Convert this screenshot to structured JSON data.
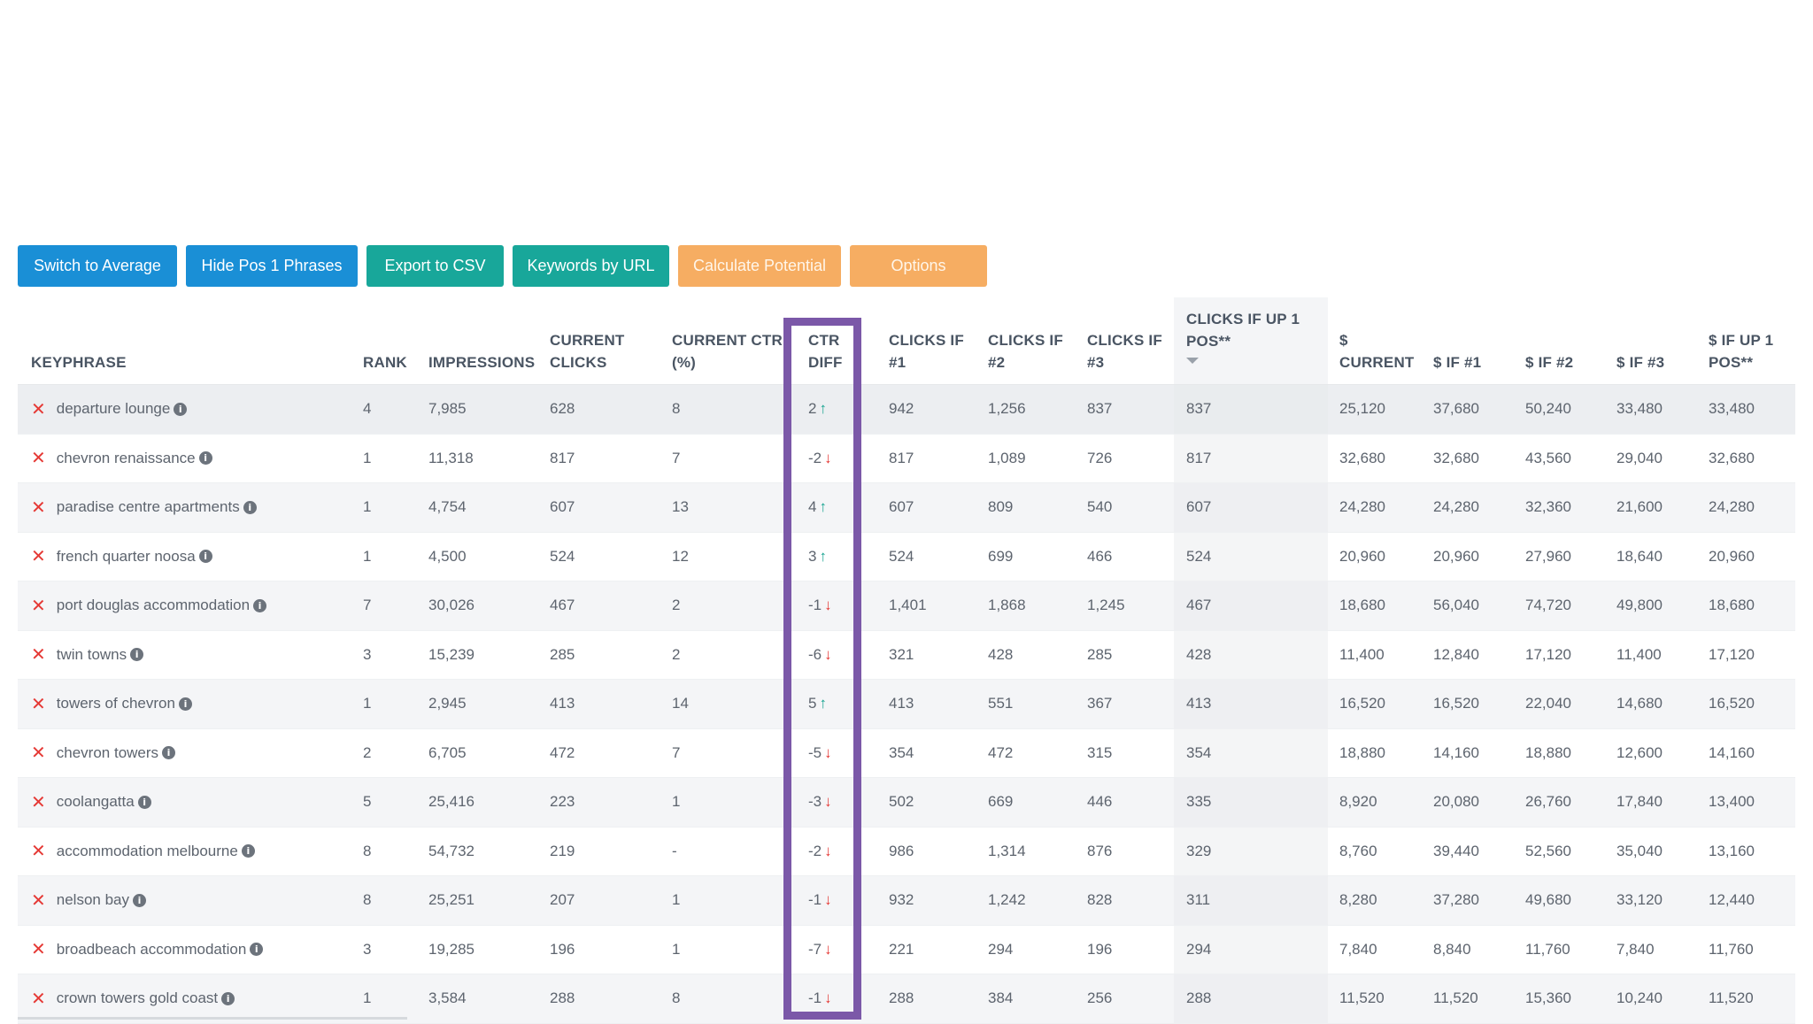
{
  "toolbar": {
    "buttons": [
      {
        "label": "Switch to Average",
        "color": "#1a8fd6"
      },
      {
        "label": "Hide Pos 1 Phrases",
        "color": "#1a8fd6"
      },
      {
        "label": "Export to CSV",
        "color": "#18a79a"
      },
      {
        "label": "Keywords by URL",
        "color": "#18a79a"
      },
      {
        "label": "Calculate Potential",
        "color": "#f6ad62"
      },
      {
        "label": "Options",
        "color": "#f6ad62"
      }
    ]
  },
  "table": {
    "headers": {
      "keyphrase": "KEYPHRASE",
      "rank": "RANK",
      "impressions": "IMPRESSIONS",
      "current_clicks_1": "CURRENT",
      "current_clicks_2": "CLICKS",
      "current_ctr_1": "CURRENT CTR",
      "current_ctr_2": "(%)",
      "ctr_diff_1": "CTR",
      "ctr_diff_2": "DIFF",
      "clicks1_1": "CLICKS IF",
      "clicks1_2": "#1",
      "clicks2_1": "CLICKS IF",
      "clicks2_2": "#2",
      "clicks3_1": "CLICKS IF",
      "clicks3_2": "#3",
      "clicksup_1": "CLICKS IF UP 1",
      "clicksup_2": "POS**",
      "dcur_1": "$",
      "dcur_2": "CURRENT",
      "d1": "$ IF #1",
      "d2": "$ IF #2",
      "d3": "$ IF #3",
      "dup_1": "$ IF UP 1",
      "dup_2": "POS**"
    },
    "rows": [
      {
        "keyphrase": "departure lounge",
        "rank": "4",
        "impressions": "7,985",
        "clicks": "628",
        "ctr": "8",
        "ctr_diff": "2",
        "dir": "up",
        "c1": "942",
        "c2": "1,256",
        "c3": "837",
        "cup": "837",
        "dcur": "25,120",
        "d1": "37,680",
        "d2": "50,240",
        "d3": "33,480",
        "dup": "33,480"
      },
      {
        "keyphrase": "chevron renaissance",
        "rank": "1",
        "impressions": "11,318",
        "clicks": "817",
        "ctr": "7",
        "ctr_diff": "-2",
        "dir": "down",
        "c1": "817",
        "c2": "1,089",
        "c3": "726",
        "cup": "817",
        "dcur": "32,680",
        "d1": "32,680",
        "d2": "43,560",
        "d3": "29,040",
        "dup": "32,680"
      },
      {
        "keyphrase": "paradise centre apartments",
        "rank": "1",
        "impressions": "4,754",
        "clicks": "607",
        "ctr": "13",
        "ctr_diff": "4",
        "dir": "up",
        "c1": "607",
        "c2": "809",
        "c3": "540",
        "cup": "607",
        "dcur": "24,280",
        "d1": "24,280",
        "d2": "32,360",
        "d3": "21,600",
        "dup": "24,280"
      },
      {
        "keyphrase": "french quarter noosa",
        "rank": "1",
        "impressions": "4,500",
        "clicks": "524",
        "ctr": "12",
        "ctr_diff": "3",
        "dir": "up",
        "c1": "524",
        "c2": "699",
        "c3": "466",
        "cup": "524",
        "dcur": "20,960",
        "d1": "20,960",
        "d2": "27,960",
        "d3": "18,640",
        "dup": "20,960"
      },
      {
        "keyphrase": "port douglas accommodation",
        "rank": "7",
        "impressions": "30,026",
        "clicks": "467",
        "ctr": "2",
        "ctr_diff": "-1",
        "dir": "down",
        "c1": "1,401",
        "c2": "1,868",
        "c3": "1,245",
        "cup": "467",
        "dcur": "18,680",
        "d1": "56,040",
        "d2": "74,720",
        "d3": "49,800",
        "dup": "18,680"
      },
      {
        "keyphrase": "twin towns",
        "rank": "3",
        "impressions": "15,239",
        "clicks": "285",
        "ctr": "2",
        "ctr_diff": "-6",
        "dir": "down",
        "c1": "321",
        "c2": "428",
        "c3": "285",
        "cup": "428",
        "dcur": "11,400",
        "d1": "12,840",
        "d2": "17,120",
        "d3": "11,400",
        "dup": "17,120"
      },
      {
        "keyphrase": "towers of chevron",
        "rank": "1",
        "impressions": "2,945",
        "clicks": "413",
        "ctr": "14",
        "ctr_diff": "5",
        "dir": "up",
        "c1": "413",
        "c2": "551",
        "c3": "367",
        "cup": "413",
        "dcur": "16,520",
        "d1": "16,520",
        "d2": "22,040",
        "d3": "14,680",
        "dup": "16,520"
      },
      {
        "keyphrase": "chevron towers",
        "rank": "2",
        "impressions": "6,705",
        "clicks": "472",
        "ctr": "7",
        "ctr_diff": "-5",
        "dir": "down",
        "c1": "354",
        "c2": "472",
        "c3": "315",
        "cup": "354",
        "dcur": "18,880",
        "d1": "14,160",
        "d2": "18,880",
        "d3": "12,600",
        "dup": "14,160"
      },
      {
        "keyphrase": "coolangatta",
        "rank": "5",
        "impressions": "25,416",
        "clicks": "223",
        "ctr": "1",
        "ctr_diff": "-3",
        "dir": "down",
        "c1": "502",
        "c2": "669",
        "c3": "446",
        "cup": "335",
        "dcur": "8,920",
        "d1": "20,080",
        "d2": "26,760",
        "d3": "17,840",
        "dup": "13,400"
      },
      {
        "keyphrase": "accommodation melbourne",
        "rank": "8",
        "impressions": "54,732",
        "clicks": "219",
        "ctr": "-",
        "ctr_diff": "-2",
        "dir": "down",
        "c1": "986",
        "c2": "1,314",
        "c3": "876",
        "cup": "329",
        "dcur": "8,760",
        "d1": "39,440",
        "d2": "52,560",
        "d3": "35,040",
        "dup": "13,160"
      },
      {
        "keyphrase": "nelson bay",
        "rank": "8",
        "impressions": "25,251",
        "clicks": "207",
        "ctr": "1",
        "ctr_diff": "-1",
        "dir": "down",
        "c1": "932",
        "c2": "1,242",
        "c3": "828",
        "cup": "311",
        "dcur": "8,280",
        "d1": "37,280",
        "d2": "49,680",
        "d3": "33,120",
        "dup": "12,440"
      },
      {
        "keyphrase": "broadbeach accommodation",
        "rank": "3",
        "impressions": "19,285",
        "clicks": "196",
        "ctr": "1",
        "ctr_diff": "-7",
        "dir": "down",
        "c1": "221",
        "c2": "294",
        "c3": "196",
        "cup": "294",
        "dcur": "7,840",
        "d1": "8,840",
        "d2": "11,760",
        "d3": "7,840",
        "dup": "11,760"
      },
      {
        "keyphrase": "crown towers gold coast",
        "rank": "1",
        "impressions": "3,584",
        "clicks": "288",
        "ctr": "8",
        "ctr_diff": "-1",
        "dir": "down",
        "c1": "288",
        "c2": "384",
        "c3": "256",
        "cup": "288",
        "dcur": "11,520",
        "d1": "11,520",
        "d2": "15,360",
        "d3": "10,240",
        "dup": "11,520"
      }
    ],
    "remove_icon": "x-icon",
    "info_icon": "info-icon",
    "up_icon": "arrow-up-icon",
    "down_icon": "arrow-down-icon",
    "highlight_color": "#7b58a8"
  }
}
